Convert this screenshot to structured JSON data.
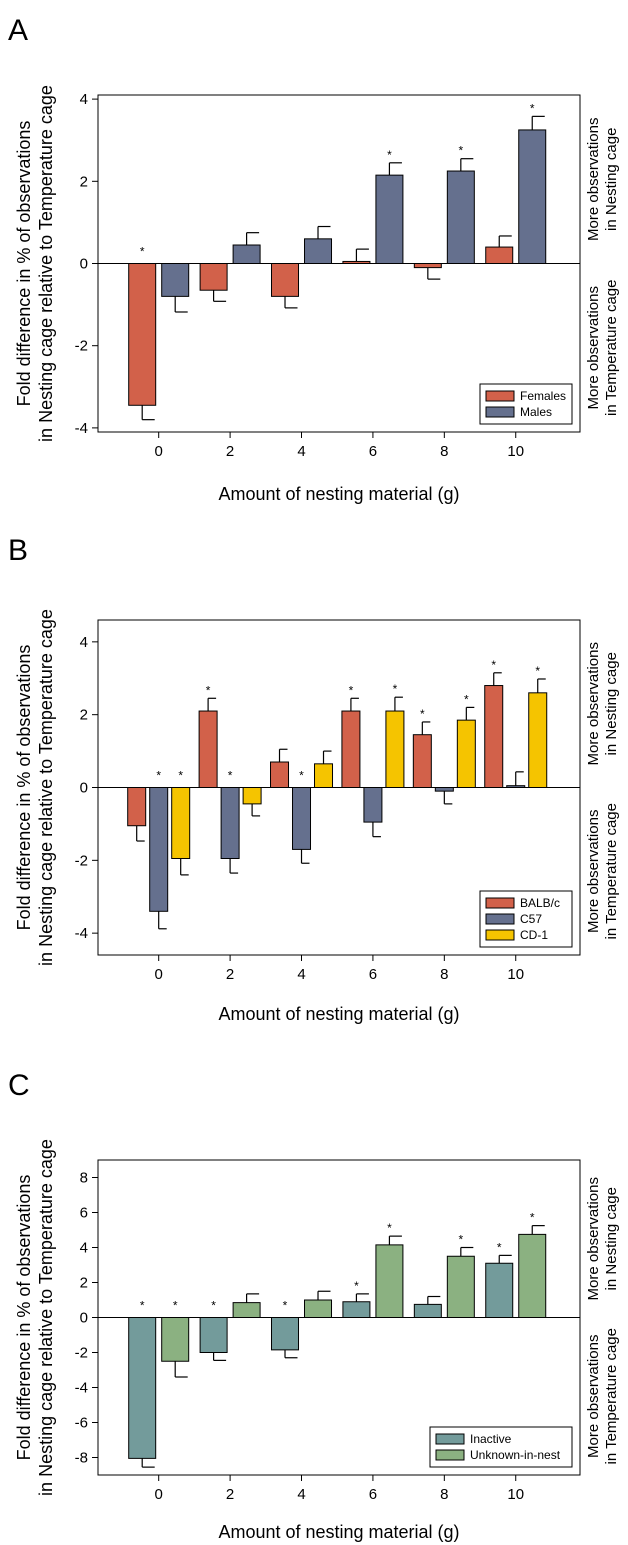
{
  "charts": [
    {
      "panel_label": "A",
      "chart_data": {
        "type": "bar",
        "categories": [
          "0",
          "2",
          "4",
          "6",
          "8",
          "10"
        ],
        "series": [
          {
            "name": "Females",
            "color": "#D2614A",
            "values": [
              -3.45,
              -0.65,
              -0.8,
              0.05,
              -0.1,
              0.4
            ],
            "errors": [
              0.35,
              0.27,
              0.28,
              0.3,
              0.28,
              0.27
            ],
            "stars": [
              true,
              false,
              false,
              false,
              false,
              false
            ]
          },
          {
            "name": "Males",
            "color": "#65708E",
            "values": [
              -0.8,
              0.45,
              0.6,
              2.15,
              2.25,
              3.25
            ],
            "errors": [
              0.38,
              0.3,
              0.3,
              0.3,
              0.3,
              0.33
            ],
            "stars": [
              false,
              false,
              false,
              true,
              true,
              true
            ]
          }
        ],
        "xlabel": "Amount of nesting material (g)",
        "ylabel_lines": [
          "Fold difference in % of observations",
          "in Nesting cage relative to Temperature cage"
        ],
        "ylim": [
          -4.1,
          4.1
        ],
        "yticks": [
          -4,
          -2,
          0,
          2,
          4
        ],
        "right_label_top": [
          "More observations",
          "in Nesting cage"
        ],
        "right_label_bottom": [
          "More observations",
          "in Temperature cage"
        ],
        "legend_position": "bottom-right",
        "star_symbol": "*",
        "grid": false
      }
    },
    {
      "panel_label": "B",
      "chart_data": {
        "type": "bar",
        "categories": [
          "0",
          "2",
          "4",
          "6",
          "8",
          "10"
        ],
        "series": [
          {
            "name": "BALB/c",
            "color": "#D2614A",
            "values": [
              -1.05,
              2.1,
              0.7,
              2.1,
              1.45,
              2.8
            ],
            "errors": [
              0.42,
              0.35,
              0.35,
              0.35,
              0.35,
              0.35
            ],
            "stars": [
              false,
              true,
              false,
              true,
              true,
              true
            ]
          },
          {
            "name": "C57",
            "color": "#65708E",
            "values": [
              -3.4,
              -1.95,
              -1.7,
              -0.95,
              -0.1,
              0.05
            ],
            "errors": [
              0.48,
              0.4,
              0.38,
              0.4,
              0.35,
              0.38
            ],
            "stars": [
              true,
              true,
              true,
              false,
              false,
              false
            ]
          },
          {
            "name": "CD-1",
            "color": "#F5C400",
            "values": [
              -1.95,
              -0.45,
              0.65,
              2.1,
              1.85,
              2.6
            ],
            "errors": [
              0.45,
              0.33,
              0.35,
              0.38,
              0.35,
              0.38
            ],
            "stars": [
              true,
              false,
              false,
              true,
              true,
              true
            ]
          }
        ],
        "xlabel": "Amount of nesting material (g)",
        "ylabel_lines": [
          "Fold difference in % of observations",
          "in Nesting cage relative to Temperature cage"
        ],
        "ylim": [
          -4.6,
          4.6
        ],
        "yticks": [
          -4,
          -2,
          0,
          2,
          4
        ],
        "right_label_top": [
          "More observations",
          "in Nesting cage"
        ],
        "right_label_bottom": [
          "More observations",
          "in Temperature cage"
        ],
        "legend_position": "bottom-right",
        "star_symbol": "*",
        "grid": false
      }
    },
    {
      "panel_label": "C",
      "chart_data": {
        "type": "bar",
        "categories": [
          "0",
          "2",
          "4",
          "6",
          "8",
          "10"
        ],
        "series": [
          {
            "name": "Inactive",
            "color": "#739B9B",
            "values": [
              -8.05,
              -2.0,
              -1.85,
              0.9,
              0.75,
              3.1
            ],
            "errors": [
              0.5,
              0.45,
              0.45,
              0.45,
              0.45,
              0.45
            ],
            "stars": [
              true,
              true,
              true,
              true,
              false,
              true
            ]
          },
          {
            "name": "Unknown-in-nest",
            "color": "#8BB181",
            "values": [
              -2.5,
              0.85,
              1.0,
              4.15,
              3.5,
              4.75
            ],
            "errors": [
              0.9,
              0.5,
              0.5,
              0.5,
              0.5,
              0.5
            ],
            "stars": [
              true,
              false,
              false,
              true,
              true,
              true
            ]
          }
        ],
        "xlabel": "Amount of nesting material (g)",
        "ylabel_lines": [
          "Fold difference in % of observations",
          "in Nesting cage relative to Temperature cage"
        ],
        "ylim": [
          -9.0,
          9.0
        ],
        "yticks": [
          -8,
          -6,
          -4,
          -2,
          0,
          2,
          4,
          6,
          8
        ],
        "right_label_top": [
          "More observations",
          "in Nesting cage"
        ],
        "right_label_bottom": [
          "More observations",
          "in Temperature cage"
        ],
        "legend_position": "bottom-right",
        "star_symbol": "*",
        "grid": false
      }
    }
  ]
}
